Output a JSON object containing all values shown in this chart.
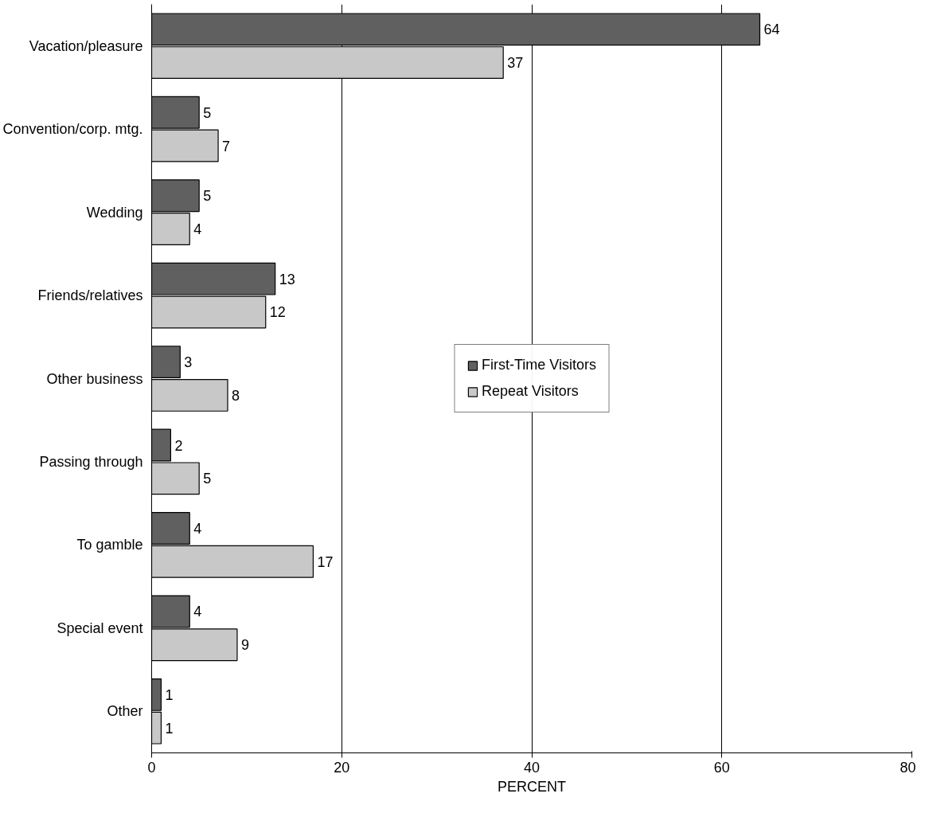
{
  "chart_data": {
    "type": "bar",
    "orientation": "horizontal",
    "categories": [
      "Vacation/pleasure",
      "Convention/corp. mtg.",
      "Wedding",
      "Friends/relatives",
      "Other business",
      "Passing through",
      "To gamble",
      "Special event",
      "Other"
    ],
    "series": [
      {
        "name": "First-Time Visitors",
        "color": "#606060",
        "values": [
          64,
          5,
          5,
          13,
          3,
          2,
          4,
          4,
          1
        ]
      },
      {
        "name": "Repeat Visitors",
        "color": "#c8c8c8",
        "values": [
          37,
          7,
          4,
          12,
          8,
          5,
          17,
          9,
          1
        ]
      }
    ],
    "xlabel": "PERCENT",
    "xlim": [
      0,
      80
    ],
    "xticks": [
      0,
      20,
      40,
      60,
      80
    ],
    "grid": "x",
    "legend": "center",
    "data_labels": true
  }
}
